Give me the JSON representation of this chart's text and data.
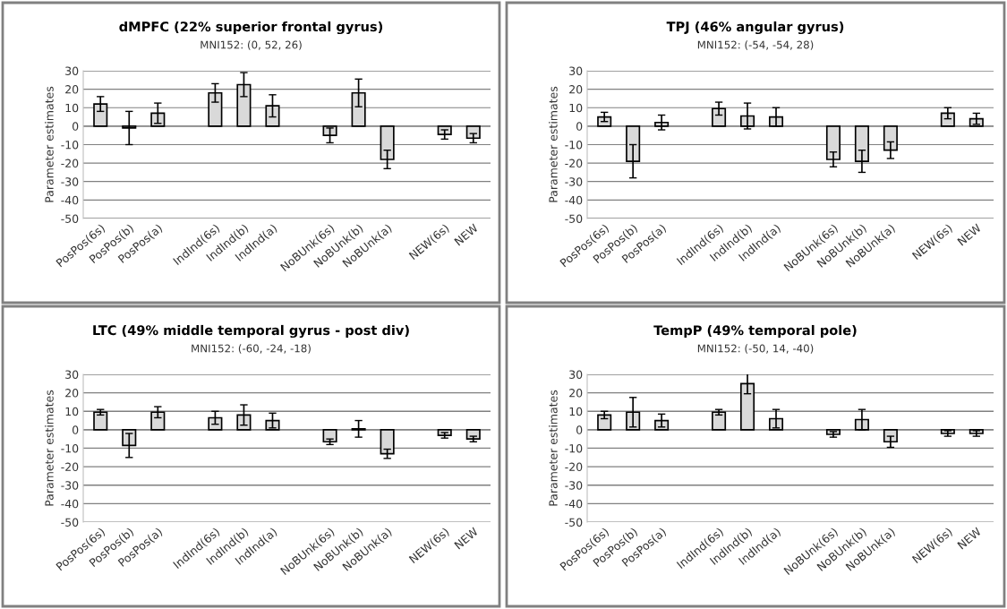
{
  "chart_data": [
    {
      "type": "bar",
      "title": "dMPFC (22% superior frontal gyrus)",
      "subtitle": "MNI152: (0, 52, 26)",
      "ylabel": "Parameter estimates",
      "categories": [
        "PosPos(6s)",
        "PosPos(b)",
        "PosPos(a)",
        null,
        "IndInd(6s)",
        "IndInd(b)",
        "IndInd(a)",
        null,
        "NoBUnk(6s)",
        "NoBUnk(b)",
        "NoBUnk(a)",
        null,
        "NEW(6s)",
        "NEW"
      ],
      "values": [
        12,
        -1,
        7,
        null,
        18,
        22.5,
        11,
        null,
        -5,
        18,
        -18,
        null,
        -4.5,
        -6.5
      ],
      "errors": [
        4,
        9,
        5.5,
        null,
        5,
        6.5,
        6,
        null,
        4,
        7.5,
        5,
        null,
        2.5,
        2.5
      ],
      "color": "#d9d9d9",
      "ylim": [
        -50,
        30
      ],
      "yticks": [
        -50,
        -40,
        -30,
        -20,
        -10,
        0,
        10,
        20,
        30
      ],
      "grid": "y",
      "legend": false
    },
    {
      "type": "bar",
      "title": "TPJ (46% angular gyrus)",
      "subtitle": "MNI152: (-54, -54, 28)",
      "ylabel": "Parameter estimates",
      "categories": [
        "PosPos(6s)",
        "PosPos(b)",
        "PosPos(a)",
        null,
        "IndInd(6s)",
        "IndInd(b)",
        "IndInd(a)",
        null,
        "NoBUnk(6s)",
        "NoBUnk(b)",
        "NoBUnk(a)",
        null,
        "NEW(6s)",
        "NEW"
      ],
      "values": [
        5,
        -19,
        2,
        null,
        9.5,
        5.5,
        5,
        null,
        -18,
        -19,
        -13,
        null,
        7,
        4
      ],
      "errors": [
        2.5,
        9,
        4,
        null,
        3.5,
        7,
        5,
        null,
        4,
        6,
        4.5,
        null,
        3,
        3
      ],
      "color": "#d9d9d9",
      "ylim": [
        -50,
        30
      ],
      "yticks": [
        -50,
        -40,
        -30,
        -20,
        -10,
        0,
        10,
        20,
        30
      ],
      "grid": "y",
      "legend": false
    },
    {
      "type": "bar",
      "title": "LTC (49% middle temporal gyrus - post div)",
      "subtitle": "MNI152: (-60, -24, -18)",
      "ylabel": "Parameter estimates",
      "categories": [
        "PosPos(6s)",
        "PosPos(b)",
        "PosPos(a)",
        null,
        "IndInd(6s)",
        "IndInd(b)",
        "IndInd(a)",
        null,
        "NoBUnk(6s)",
        "NoBUnk(b)",
        "NoBUnk(a)",
        null,
        "NEW(6s)",
        "NEW"
      ],
      "values": [
        9.5,
        -8.5,
        9.5,
        null,
        6.5,
        8,
        5,
        null,
        -6.5,
        0.5,
        -13,
        null,
        -3,
        -5
      ],
      "errors": [
        1.5,
        6.5,
        3,
        null,
        3.5,
        5.5,
        4,
        null,
        1.5,
        4.5,
        2.5,
        null,
        1.5,
        1.5
      ],
      "color": "#d9d9d9",
      "ylim": [
        -50,
        30
      ],
      "yticks": [
        -50,
        -40,
        -30,
        -20,
        -10,
        0,
        10,
        20,
        30
      ],
      "grid": "y",
      "legend": false
    },
    {
      "type": "bar",
      "title": "TempP (49% temporal pole)",
      "subtitle": "MNI152: (-50, 14, -40)",
      "ylabel": "Parameter estimates",
      "categories": [
        "PosPos(6s)",
        "PosPos(b)",
        "PosPos(a)",
        null,
        "IndInd(6s)",
        "IndInd(b)",
        "IndInd(a)",
        null,
        "NoBUnk(6s)",
        "NoBUnk(b)",
        "NoBUnk(a)",
        null,
        "NEW(6s)",
        "NEW"
      ],
      "values": [
        8,
        9.5,
        5,
        null,
        9.5,
        25,
        6,
        null,
        -2.5,
        5.5,
        -6.5,
        null,
        -2,
        -2
      ],
      "errors": [
        2,
        8,
        3.5,
        null,
        1.5,
        5.5,
        5,
        null,
        1.5,
        5.5,
        3,
        null,
        1.5,
        1.5
      ],
      "color": "#d9d9d9",
      "ylim": [
        -50,
        30
      ],
      "yticks": [
        -50,
        -40,
        -30,
        -20,
        -10,
        0,
        10,
        20,
        30
      ],
      "grid": "y",
      "legend": false
    }
  ]
}
